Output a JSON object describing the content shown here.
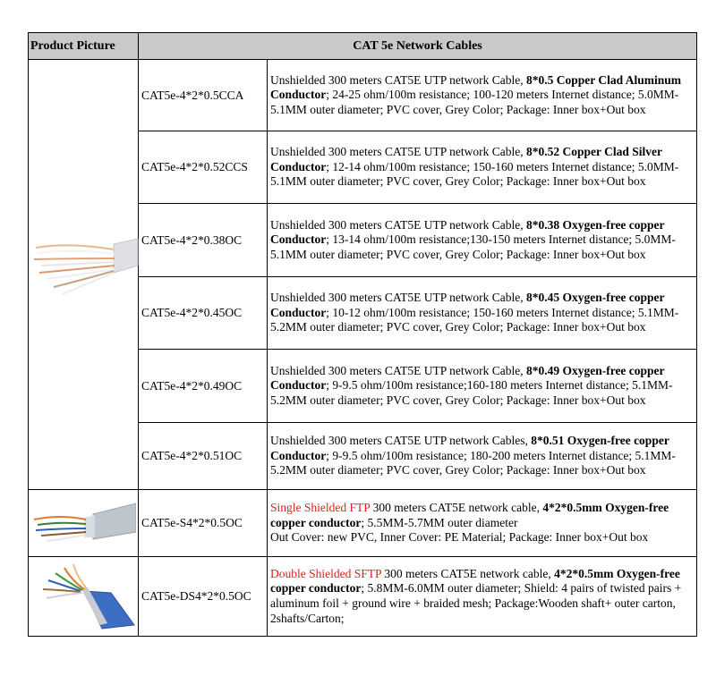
{
  "header": {
    "picture_label": "Product Picture",
    "category_label": "CAT 5e Network Cables"
  },
  "products": [
    {
      "model": "CAT5e-4*2*0.5CCA",
      "desc_a": "Unshielded 300 meters CAT5E UTP network Cable, ",
      "desc_bold": "8*0.5 Copper Clad Aluminum Conductor",
      "desc_b": "; 24-25 ohm/100m resistance; 100-120 meters Internet distance; 5.0MM-5.1MM outer diameter; PVC cover, Grey Color;  Package: Inner box+Out box"
    },
    {
      "model": "CAT5e-4*2*0.52CCS",
      "desc_a": "Unshielded 300 meters CAT5E UTP network Cable, ",
      "desc_bold": "8*0.52 Copper Clad Silver Conductor",
      "desc_b": "; 12-14 ohm/100m resistance; 150-160 meters Internet distance; 5.0MM-5.1MM outer diameter; PVC cover, Grey Color;  Package: Inner box+Out box"
    },
    {
      "model": "CAT5e-4*2*0.38OC",
      "desc_a": "Unshielded 300 meters CAT5E UTP network Cable, ",
      "desc_bold": "8*0.38 Oxygen-free copper Conductor",
      "desc_b": "; 13-14 ohm/100m resistance;130-150 meters Internet distance; 5.0MM-5.1MM outer diameter; PVC cover, Grey Color;  Package: Inner box+Out box"
    },
    {
      "model": "CAT5e-4*2*0.45OC",
      "desc_a": "Unshielded 300 meters CAT5E UTP network Cable, ",
      "desc_bold": "8*0.45 Oxygen-free copper Conductor",
      "desc_b": "; 10-12 ohm/100m resistance; 150-160 meters Internet distance; 5.1MM-5.2MM outer diameter; PVC cover, Grey Color;  Package: Inner box+Out box"
    },
    {
      "model": "CAT5e-4*2*0.49OC",
      "desc_a": "Unshielded 300 meters CAT5E UTP network Cable, ",
      "desc_bold": "8*0.49 Oxygen-free copper Conductor",
      "desc_b": "; 9-9.5 ohm/100m resistance;160-180 meters Internet distance; 5.1MM-5.2MM outer diameter; PVC cover, Grey Color;  Package: Inner box+Out box"
    },
    {
      "model": "CAT5e-4*2*0.51OC",
      "desc_a": "Unshielded 300 meters CAT5E UTP network Cables, ",
      "desc_bold": "8*0.51 Oxygen-free copper Conductor",
      "desc_b": "; 9-9.5 ohm/100m resistance; 180-200 meters Internet distance; 5.1MM-5.2MM  outer diameter; PVC cover, Grey Color;  Package: Inner box+Out box"
    },
    {
      "model": "CAT5e-S4*2*0.5OC",
      "desc_red": "Single Shielded FTP",
      "desc_a": " 300 meters CAT5E network cable, ",
      "desc_bold": "4*2*0.5mm Oxygen-free copper conductor",
      "desc_b": "; 5.5MM-5.7MM outer diameter",
      "desc_c": "Out Cover: new PVC, Inner Cover: PE Material; Package: Inner box+Out box"
    },
    {
      "model": "CAT5e-DS4*2*0.5OC",
      "desc_red": "Double Shielded SFTP",
      "desc_a": " 300 meters CAT5E network cable, ",
      "desc_bold": "4*2*0.5mm Oxygen-free copper conductor",
      "desc_b": ";  5.8MM-6.0MM outer diameter; Shield: 4 pairs of twisted pairs + aluminum foil + ground wire + braided mesh; Package:Wooden shaft+ outer carton, 2shafts/Carton;"
    }
  ],
  "icons": {
    "utp_cable": "utp-cable-image",
    "ftp_cable": "ftp-cable-image",
    "sftp_cable": "sftp-cable-image"
  },
  "colors": {
    "header_bg": "#c9c9c9",
    "highlight_red": "#e02020",
    "cable_jacket": "#d9d9dd",
    "sftp_jacket": "#3c6fc4"
  }
}
